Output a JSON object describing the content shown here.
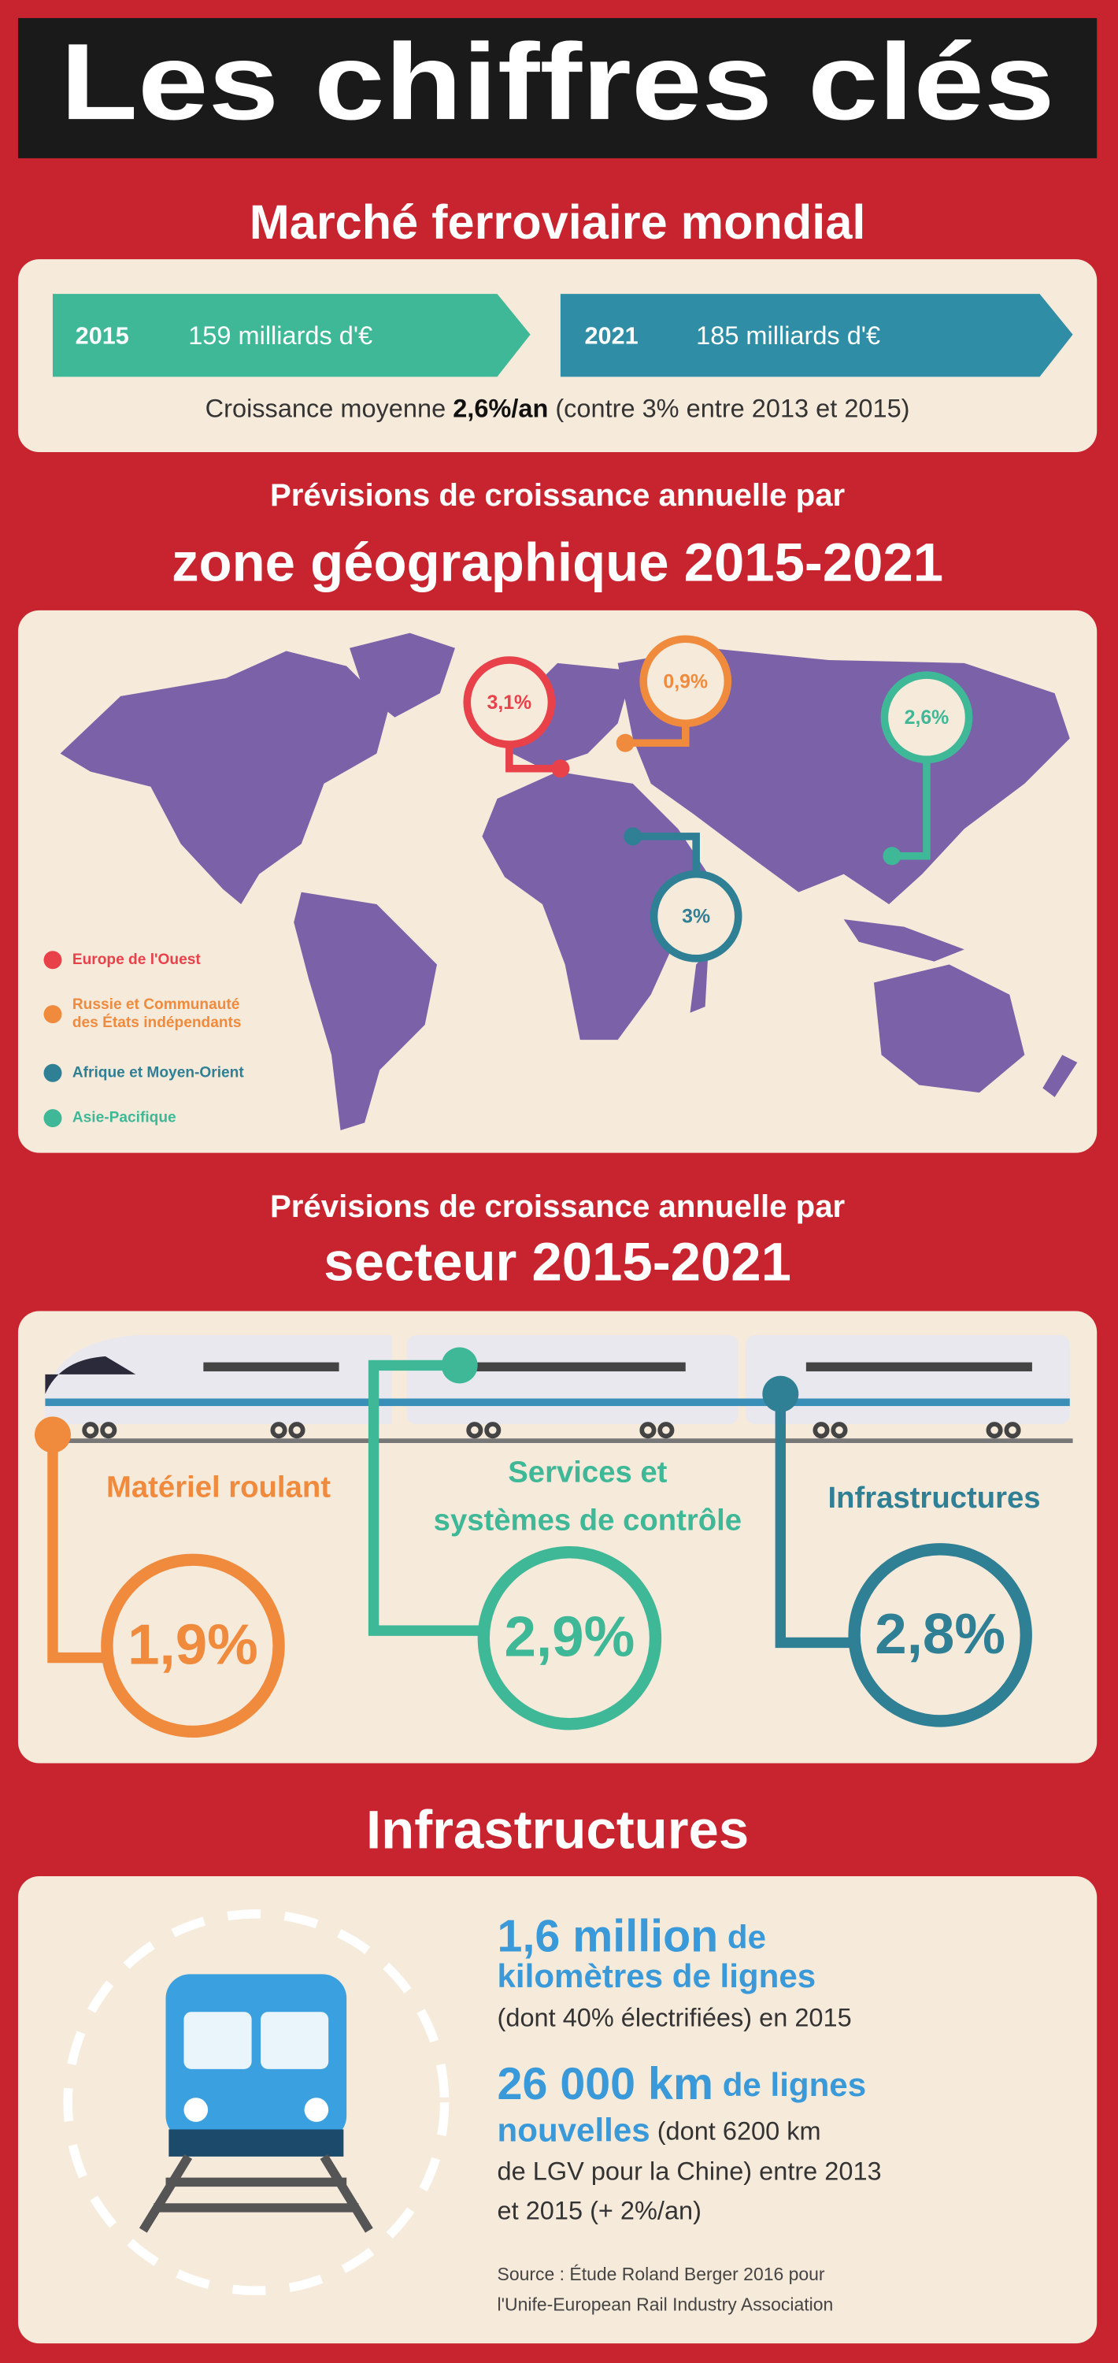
{
  "title": "Les chiffres clés",
  "market": {
    "heading": "Marché ferroviaire mondial",
    "items": [
      {
        "year": "2015",
        "amount": "159 milliards d'€"
      },
      {
        "year": "2021",
        "amount": "185 milliards d'€"
      }
    ],
    "growth": {
      "prefix": "Croissance moyenne ",
      "rate": "2,6%/an",
      "suffix": " (contre 3% entre 2013 et 2015)"
    }
  },
  "zones": {
    "heading_top": "Prévisions de croissance annuelle par",
    "heading": "zone géographique 2015-2021",
    "regions": [
      {
        "name": [
          "Europe de l'Ouest"
        ],
        "rate": "3,1%",
        "color": "#e8414a"
      },
      {
        "name": [
          "Russie et Communauté",
          "des États indépendants"
        ],
        "rate": "0,9%",
        "color": "#f08a3c"
      },
      {
        "name": [
          "Afrique et Moyen-Orient"
        ],
        "rate": "3%",
        "color": "#2f7f95"
      },
      {
        "name": [
          "Asie-Pacifique"
        ],
        "rate": "2,6%",
        "color": "#3fb898"
      }
    ]
  },
  "sectors": {
    "heading_top": "Prévisions de croissance annuelle par",
    "heading": "secteur 2015-2021",
    "items": [
      {
        "name": [
          "Matériel roulant"
        ],
        "rate": "1,9%",
        "color": "#f08a3c"
      },
      {
        "name": [
          "Services et",
          "systèmes de contrôle"
        ],
        "rate": "2,9%",
        "color": "#3fb898"
      },
      {
        "name": [
          "Infrastructures"
        ],
        "rate": "2,8%",
        "color": "#2f7f95"
      }
    ]
  },
  "infrastructures": {
    "heading": "Infrastructures",
    "facts": [
      {
        "lines": [
          [
            "1,6 million",
            " de"
          ],
          [
            "kilomètres de lignes"
          ],
          [
            "(dont 40% électrifiées) en 2015"
          ]
        ]
      },
      {
        "lines": [
          [
            "26 000 km",
            " de lignes"
          ],
          [
            "nouvelles",
            " (dont 6200 km"
          ],
          [
            "de LGV pour la Chine) entre 2013"
          ],
          [
            "et 2015 (+ 2%/an)"
          ]
        ]
      }
    ],
    "source": [
      "Source : Étude Roland Berger 2016 pour",
      "l'Unife-European Rail Industry Association"
    ]
  }
}
